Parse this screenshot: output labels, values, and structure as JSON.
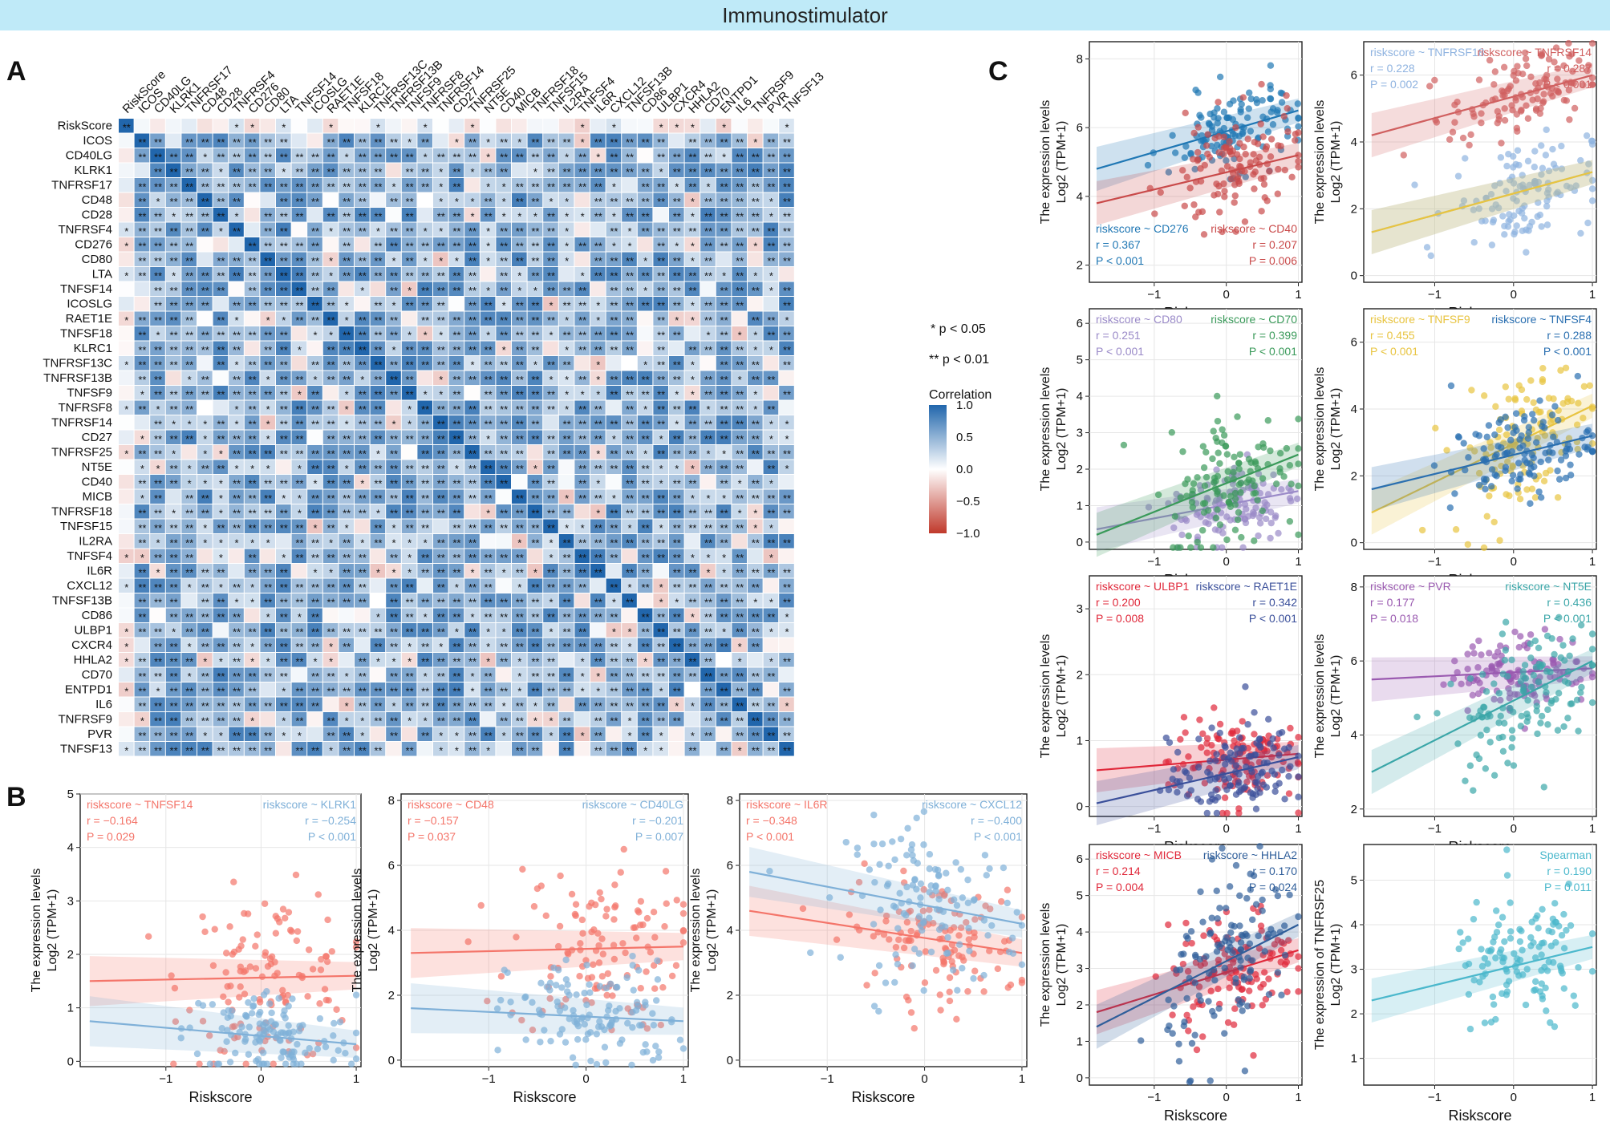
{
  "banner": "Immunostimulator",
  "panels": {
    "A": "A",
    "B": "B",
    "C": "C"
  },
  "heatmap": {
    "genes": [
      "RiskScore",
      "ICOS",
      "CD40LG",
      "KLRK1",
      "TNFRSF17",
      "CD48",
      "CD28",
      "TNFRSF4",
      "CD276",
      "CD80",
      "LTA",
      "TNFSF14",
      "ICOSLG",
      "RAET1E",
      "TNFSF18",
      "KLRC1",
      "TNFRSF13C",
      "TNFRSF13B",
      "TNFSF9",
      "TNFRSF8",
      "TNFRSF14",
      "CD27",
      "TNFRSF25",
      "NT5E",
      "CD40",
      "MICB",
      "TNFRSF18",
      "TNFSF15",
      "IL2RA",
      "TNFSF4",
      "IL6R",
      "CXCL12",
      "TNFSF13B",
      "CD86",
      "ULBP1",
      "CXCR4",
      "HHLA2",
      "CD70",
      "ENTPD1",
      "IL6",
      "TNFRSF9",
      "PVR",
      "TNFSF13"
    ],
    "legend_title": "Correlation",
    "legend_ticks": [
      "1.0",
      "0.5",
      "0.0",
      "−0.5",
      "−1.0"
    ],
    "sig_notes": [
      "* p < 0.05",
      "** p < 0.01"
    ],
    "colors": {
      "pos": "#2166ac",
      "neg": "#c0392b",
      "mid": "#ffffff"
    }
  },
  "chart_data": [
    {
      "type": "scatter",
      "panel": "B",
      "xlabel": "Riskscore",
      "ylabel_line1": "The expression levels",
      "ylabel_line2": "Log2 (TPM+1)",
      "xlim": [
        -1.9,
        1.05
      ],
      "ylim": [
        -0.1,
        5
      ],
      "xticks": [
        -1,
        0,
        1
      ],
      "yticks": [
        0,
        1,
        2,
        3,
        4,
        5
      ],
      "series": [
        {
          "name": "riskscore ~ TNFSF14",
          "color": "#f4756a",
          "r": "r = −0.164",
          "p": "P = 0.029",
          "line": [
            1.5,
            1.6
          ],
          "center": 1.6,
          "spread": 0.8
        },
        {
          "name": "riskscore ~ KLRK1",
          "color": "#7fb0d8",
          "r": "r = −0.254",
          "p": "P < 0.001",
          "line": [
            0.75,
            0.32
          ],
          "center": 0.35,
          "spread": 0.45
        }
      ]
    },
    {
      "type": "scatter",
      "panel": "B",
      "xlabel": "Riskscore",
      "ylabel_line1": "The expression levels",
      "ylabel_line2": "Log2 (TPM+1)",
      "xlim": [
        -1.9,
        1.05
      ],
      "ylim": [
        -0.2,
        8.2
      ],
      "xticks": [
        -1,
        0,
        1
      ],
      "yticks": [
        0,
        2,
        4,
        6,
        8
      ],
      "series": [
        {
          "name": "riskscore ~ CD48",
          "color": "#f4756a",
          "r": "r = −0.157",
          "p": "P = 0.037",
          "line": [
            3.3,
            3.5
          ],
          "center": 3.5,
          "spread": 1.3
        },
        {
          "name": "riskscore ~ CD40LG",
          "color": "#7fb0d8",
          "r": "r = −0.201",
          "p": "P = 0.007",
          "line": [
            1.6,
            1.2
          ],
          "center": 1.3,
          "spread": 0.9
        }
      ]
    },
    {
      "type": "scatter",
      "panel": "B",
      "xlabel": "Riskscore",
      "ylabel_line1": "The expression levels",
      "ylabel_line2": "Log2 (TPM+1)",
      "xlim": [
        -1.9,
        1.05
      ],
      "ylim": [
        -0.2,
        8.2
      ],
      "xticks": [
        -1,
        0,
        1
      ],
      "yticks": [
        0,
        2,
        4,
        6,
        8
      ],
      "series": [
        {
          "name": "riskscore ~ IL6R",
          "color": "#f4756a",
          "r": "r = −0.348",
          "p": "P < 0.001",
          "line": [
            4.6,
            3.3
          ],
          "center": 3.8,
          "spread": 0.9
        },
        {
          "name": "riskscore ~ CXCL12",
          "color": "#7fb0d8",
          "r": "r = −0.400",
          "p": "P < 0.001",
          "line": [
            5.8,
            4.2
          ],
          "center": 4.8,
          "spread": 1.2
        }
      ]
    },
    {
      "type": "scatter",
      "panel": "C",
      "xlabel": "Riskscore",
      "ylabel_line1": "The expression levels",
      "ylabel_line2": "Log2 (TPM+1)",
      "xlim": [
        -1.9,
        1.05
      ],
      "ylim": [
        1.5,
        8.5
      ],
      "xticks": [
        -1,
        0,
        1
      ],
      "yticks": [
        2,
        4,
        6,
        8
      ],
      "label_pos": "bottom",
      "series": [
        {
          "name": "riskscore ~ CD276",
          "color": "#1f77b4",
          "r": "r = 0.367",
          "p": "P < 0.001",
          "line": [
            4.8,
            6.5
          ],
          "center": 6.0,
          "spread": 0.6
        },
        {
          "name": "riskscore ~ CD40",
          "color": "#c94a4a",
          "r": "r = 0.207",
          "p": "P = 0.006",
          "line": [
            3.8,
            5.2
          ],
          "center": 4.8,
          "spread": 0.8
        }
      ]
    },
    {
      "type": "scatter",
      "panel": "C",
      "xlabel": "Riskscore",
      "ylabel_line1": "The expression levels",
      "ylabel_line2": "Log2 (TPM+1)",
      "xlim": [
        -1.9,
        1.05
      ],
      "ylim": [
        -0.2,
        7
      ],
      "xticks": [
        -1,
        0,
        1
      ],
      "yticks": [
        0,
        2,
        4,
        6
      ],
      "series": [
        {
          "name": "riskscore ~ TNFRSF18",
          "color": "#8fb3e0",
          "r": "r = 0.228",
          "p": "P = 0.002",
          "line": [
            1.3,
            3.1
          ],
          "center": 2.2,
          "spread": 0.8
        },
        {
          "name": "riskscore ~ TNFRSF14",
          "color": "#d06060",
          "r": "r = 0.287",
          "p": "P < 0.001",
          "line": [
            4.2,
            6.0
          ],
          "center": 5.6,
          "spread": 0.6
        },
        {
          "name": "",
          "color": "#e8c440",
          "r": "",
          "p": "",
          "line": [
            1.3,
            3.1
          ],
          "center": 0,
          "spread": 0
        }
      ]
    },
    {
      "type": "scatter",
      "panel": "C",
      "xlabel": "Riskscore",
      "ylabel_line1": "The expression levels",
      "ylabel_line2": "Log2 (TPM+1)",
      "xlim": [
        -1.9,
        1.05
      ],
      "ylim": [
        -0.2,
        6.4
      ],
      "xticks": [
        -1,
        0,
        1
      ],
      "yticks": [
        0,
        1,
        2,
        3,
        4,
        5,
        6
      ],
      "series": [
        {
          "name": "riskscore ~ CD80",
          "color": "#9a8ac8",
          "r": "r = 0.251",
          "p": "P < 0.001",
          "line": [
            0.35,
            1.4
          ],
          "center": 0.9,
          "spread": 0.6
        },
        {
          "name": "riskscore ~ CD70",
          "color": "#3a9a5a",
          "r": "r = 0.399",
          "p": "P < 0.001",
          "line": [
            0.2,
            2.4
          ],
          "center": 1.8,
          "spread": 1.0
        }
      ]
    },
    {
      "type": "scatter",
      "panel": "C",
      "xlabel": "Riskscore",
      "ylabel_line1": "The expression levels",
      "ylabel_line2": "Log2 (TPM+1)",
      "xlim": [
        -1.9,
        1.05
      ],
      "ylim": [
        -0.2,
        7
      ],
      "xticks": [
        -1,
        0,
        1
      ],
      "yticks": [
        0,
        2,
        4,
        6
      ],
      "series": [
        {
          "name": "riskscore ~ TNFSF9",
          "color": "#e8c440",
          "r": "r = 0.455",
          "p": "P < 0.001",
          "line": [
            0.9,
            4.1
          ],
          "center": 2.8,
          "spread": 1.0
        },
        {
          "name": "riskscore ~ TNFSF4",
          "color": "#2a6fb0",
          "r": "r = 0.288",
          "p": "P < 0.001",
          "line": [
            1.6,
            3.2
          ],
          "center": 2.6,
          "spread": 0.7
        }
      ]
    },
    {
      "type": "scatter",
      "panel": "C",
      "xlabel": "Riskscore",
      "ylabel_line1": "The expression levels",
      "ylabel_line2": "Log2 (TPM+1)",
      "xlim": [
        -1.9,
        1.05
      ],
      "ylim": [
        -0.15,
        3.5
      ],
      "xticks": [
        -1,
        0,
        1
      ],
      "yticks": [
        0,
        1,
        2,
        3
      ],
      "series": [
        {
          "name": "riskscore ~ ULBP1",
          "color": "#e0283a",
          "r": "r = 0.200",
          "p": "P = 0.008",
          "line": [
            0.55,
            0.8
          ],
          "center": 0.6,
          "spread": 0.35
        },
        {
          "name": "riskscore ~ RAET1E",
          "color": "#3a4f9a",
          "r": "r = 0.342",
          "p": "P < 0.001",
          "line": [
            0.05,
            0.75
          ],
          "center": 0.5,
          "spread": 0.35
        }
      ]
    },
    {
      "type": "scatter",
      "panel": "C",
      "xlabel": "Riskscore",
      "ylabel_line1": "The expression levels",
      "ylabel_line2": "Log2 (TPM+1)",
      "xlim": [
        -1.9,
        1.05
      ],
      "ylim": [
        1.8,
        8.3
      ],
      "xticks": [
        -1,
        0,
        1
      ],
      "yticks": [
        2,
        4,
        6,
        8
      ],
      "series": [
        {
          "name": "riskscore ~ PVR",
          "color": "#9a5ab0",
          "r": "r = 0.177",
          "p": "P = 0.018",
          "line": [
            5.5,
            5.8
          ],
          "center": 5.8,
          "spread": 0.5
        },
        {
          "name": "riskscore ~ NT5E",
          "color": "#3aa6a8",
          "r": "r = 0.436",
          "p": "P < 0.001",
          "line": [
            3.0,
            6.0
          ],
          "center": 5.0,
          "spread": 0.9
        }
      ]
    },
    {
      "type": "scatter",
      "panel": "C",
      "xlabel": "Riskscore",
      "ylabel_line1": "The expression levels",
      "ylabel_line2": "Log2 (TPM+1)",
      "xlim": [
        -1.9,
        1.05
      ],
      "ylim": [
        -0.2,
        6.4
      ],
      "xticks": [
        -1,
        0,
        1
      ],
      "yticks": [
        0,
        1,
        2,
        3,
        4,
        5,
        6
      ],
      "series": [
        {
          "name": "riskscore ~ MICB",
          "color": "#e0283a",
          "r": "r = 0.214",
          "p": "P = 0.004",
          "line": [
            1.8,
            3.5
          ],
          "center": 2.8,
          "spread": 0.8
        },
        {
          "name": "riskscore ~ HHLA2",
          "color": "#2f5e9a",
          "r": "r = 0.170",
          "p": "P = 0.024",
          "line": [
            1.4,
            4.2
          ],
          "center": 3.0,
          "spread": 1.2
        }
      ]
    },
    {
      "type": "scatter",
      "panel": "C",
      "xlabel": "Riskscore",
      "ylabel_line1": "The expression of TNFRSF25",
      "ylabel_line2": "Log2 (TPM+1)",
      "xlim": [
        -1.9,
        1.05
      ],
      "ylim": [
        0.4,
        5.8
      ],
      "xticks": [
        -1,
        0,
        1
      ],
      "yticks": [
        1,
        2,
        3,
        4,
        5
      ],
      "series": [
        {
          "name": "Spearman",
          "color": "#4bb8cc",
          "r": "r = 0.190",
          "p": "P = 0.011",
          "line": [
            2.3,
            3.5
          ],
          "center": 3.2,
          "spread": 0.8
        }
      ]
    }
  ]
}
